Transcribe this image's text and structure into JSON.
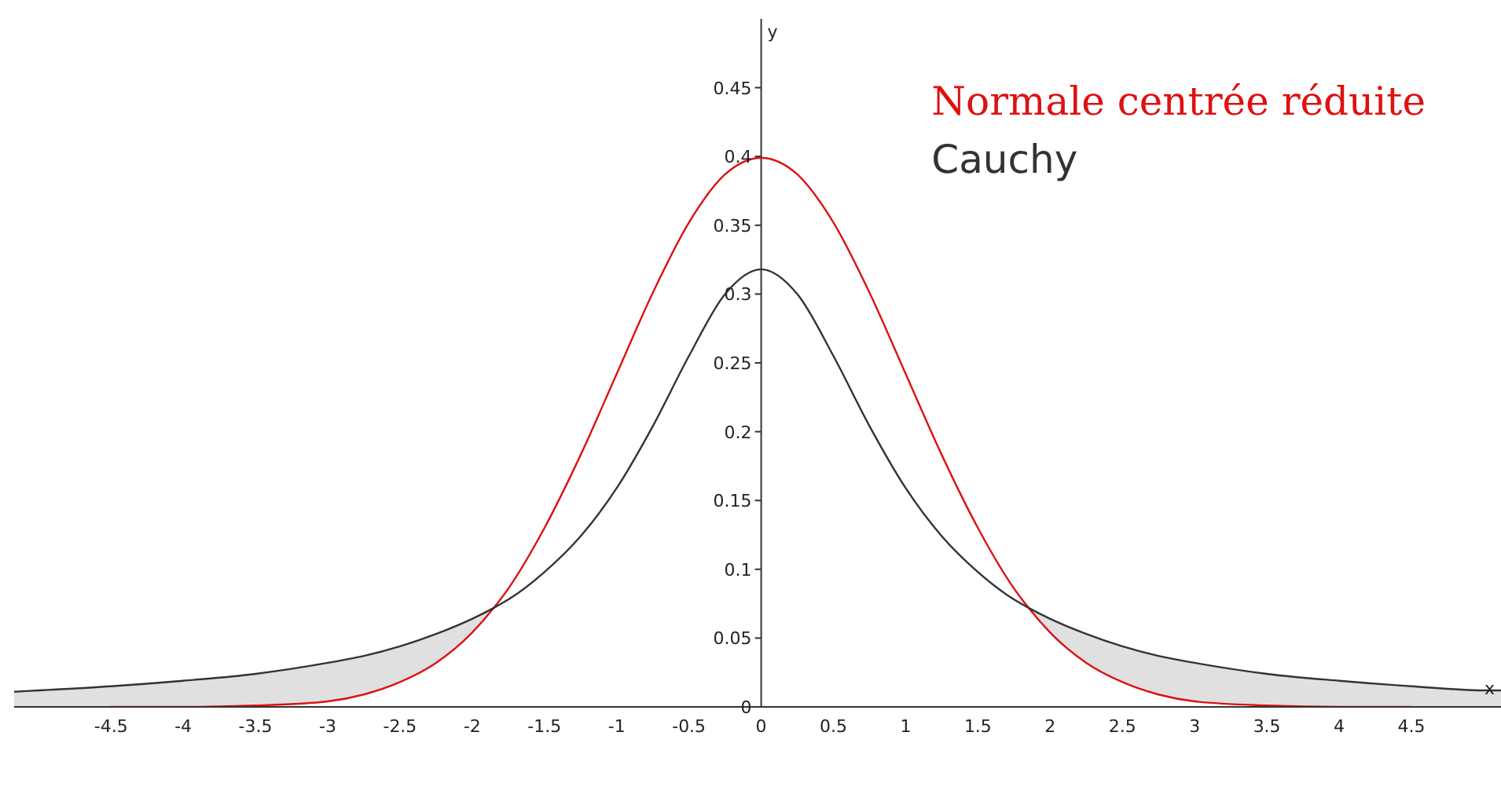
{
  "chart_data": {
    "type": "line",
    "xlabel": "x",
    "ylabel": "y",
    "x": [
      -5.17,
      -5,
      -4.5,
      -4,
      -3.5,
      -3,
      -2.75,
      -2.5,
      -2.25,
      -2,
      -1.85,
      -1.75,
      -1.5,
      -1.25,
      -1,
      -0.75,
      -0.5,
      -0.25,
      0,
      0.25,
      0.5,
      0.75,
      1,
      1.25,
      1.5,
      1.75,
      1.85,
      2,
      2.25,
      2.5,
      2.75,
      3,
      3.5,
      4,
      4.5,
      5,
      5.12
    ],
    "series": [
      {
        "name": "Normale centrée réduite",
        "color": "#dd1111",
        "values": [
          null,
          null,
          0,
          0,
          0.001,
          0.004,
          0.009,
          0.018,
          0.032,
          0.054,
          0.072,
          0.086,
          0.13,
          0.183,
          0.242,
          0.301,
          0.352,
          0.387,
          0.399,
          0.387,
          0.352,
          0.301,
          0.242,
          0.183,
          0.13,
          0.086,
          0.072,
          0.054,
          0.032,
          0.018,
          0.009,
          0.004,
          0.001,
          0,
          0,
          null,
          null
        ]
      },
      {
        "name": "Cauchy",
        "color": "#333333",
        "values": [
          0.011,
          0.012,
          0.015,
          0.019,
          0.024,
          0.032,
          0.037,
          0.044,
          0.053,
          0.064,
          0.072,
          0.078,
          0.098,
          0.124,
          0.159,
          0.204,
          0.255,
          0.3,
          0.318,
          0.3,
          0.255,
          0.204,
          0.159,
          0.124,
          0.098,
          0.078,
          0.072,
          0.064,
          0.053,
          0.044,
          0.037,
          0.032,
          0.024,
          0.019,
          0.015,
          0.012,
          0.012
        ],
        "lower": [
          0,
          0,
          0,
          0,
          0.001,
          0.004,
          0.009,
          0.018,
          0.032,
          0.054,
          0.072,
          null,
          null,
          null,
          null,
          null,
          null,
          null,
          null,
          null,
          null,
          null,
          null,
          null,
          null,
          null,
          0.072,
          0.054,
          0.032,
          0.018,
          0.009,
          0.004,
          0.001,
          0,
          0,
          0,
          0
        ],
        "upper": [
          0.011,
          0.012,
          0.015,
          0.019,
          0.024,
          0.032,
          0.037,
          0.044,
          0.053,
          0.064,
          0.072,
          null,
          null,
          null,
          null,
          null,
          null,
          null,
          null,
          null,
          null,
          null,
          null,
          null,
          null,
          null,
          0.072,
          0.064,
          0.053,
          0.044,
          0.037,
          0.032,
          0.024,
          0.019,
          0.015,
          0.012,
          0.012
        ]
      }
    ],
    "xlim": [
      -5.17,
      5.12
    ],
    "ylim": [
      0,
      0.5
    ],
    "xticks": [
      -4.5,
      -4,
      -3.5,
      -3,
      -2.5,
      -2,
      -1.5,
      -1,
      -0.5,
      0,
      0.5,
      1,
      1.5,
      2,
      2.5,
      3,
      3.5,
      4,
      4.5
    ],
    "yticks": [
      0,
      0.05,
      0.1,
      0.15,
      0.2,
      0.25,
      0.3,
      0.35,
      0.4,
      0.45
    ],
    "grid": false,
    "legend": "top right",
    "marker": "none",
    "line_style": "solid"
  }
}
